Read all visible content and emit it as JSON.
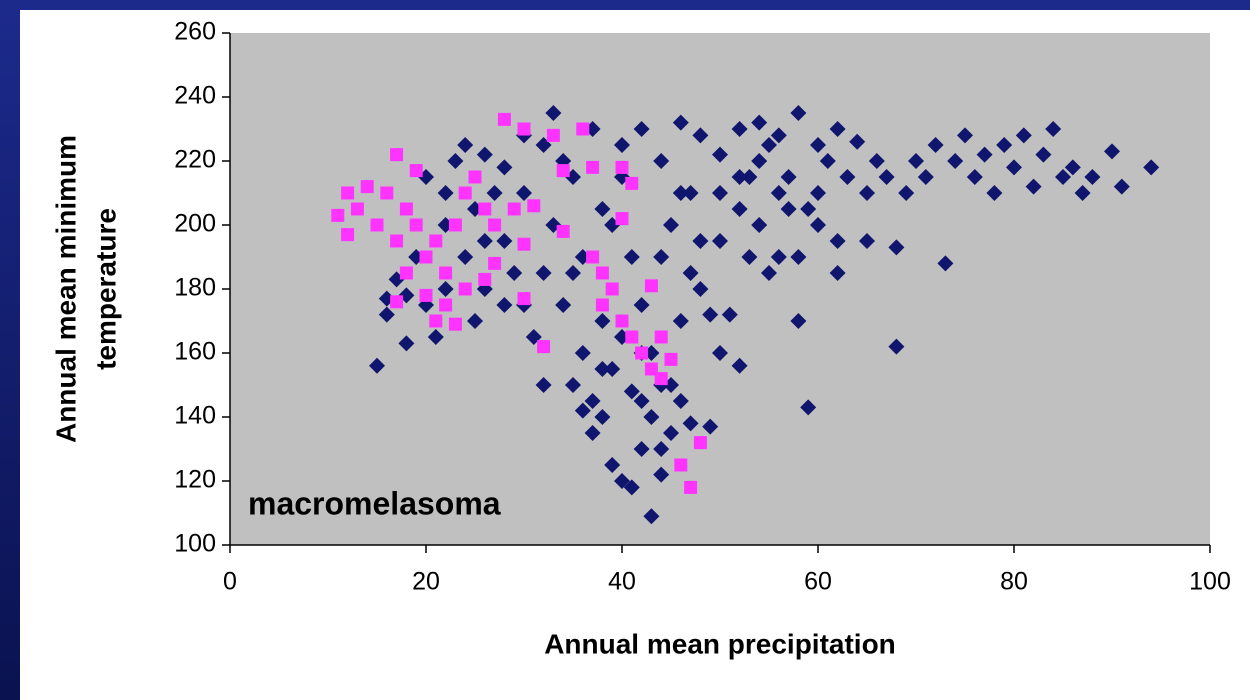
{
  "chart_data": {
    "type": "scatter",
    "xlabel": "Annual mean precipitation",
    "ylabel": [
      "Annual mean minimum",
      "temperature"
    ],
    "annotation": "macromelasoma",
    "xlim": [
      0,
      100
    ],
    "xticks": [
      0,
      20,
      40,
      60,
      80,
      100
    ],
    "ylim": [
      100,
      260
    ],
    "yticks": [
      100,
      120,
      140,
      160,
      180,
      200,
      220,
      240,
      260
    ],
    "grid": false,
    "background": "#c0c0c0",
    "series": [
      {
        "color": "#10166e",
        "marker": "diamond",
        "x": [
          15,
          16,
          17,
          18,
          19,
          20,
          21,
          22,
          23,
          24,
          25,
          26,
          27,
          28,
          29,
          30,
          31,
          32,
          33,
          34,
          35,
          36,
          37,
          38,
          39,
          40,
          41,
          42,
          43,
          44,
          45,
          46,
          47,
          48,
          49,
          50,
          51,
          52,
          53,
          54,
          55,
          56,
          57,
          58,
          59,
          60,
          61,
          62,
          63,
          64,
          65,
          66,
          67,
          68,
          69,
          70,
          71,
          72,
          73,
          74,
          75,
          76,
          77,
          78,
          79,
          80,
          81,
          82,
          83,
          84,
          85,
          86,
          87,
          88,
          90,
          91,
          94,
          38,
          39,
          40,
          41,
          42,
          43,
          44,
          45,
          46,
          47,
          49,
          35,
          36,
          37,
          39,
          41,
          43,
          44,
          42,
          25,
          28,
          30,
          32,
          33,
          35,
          37,
          40,
          42,
          44,
          46,
          48,
          50,
          52,
          54,
          56,
          58,
          60,
          62,
          45,
          47,
          50,
          52,
          55,
          58,
          60,
          62,
          65,
          68,
          36,
          34,
          32,
          28,
          26,
          24,
          22,
          20,
          18,
          16,
          22,
          26,
          30,
          38,
          44,
          48,
          50,
          53,
          57,
          59,
          54,
          56,
          52,
          46,
          42,
          40,
          38
        ],
        "values": [
          156,
          172,
          183,
          163,
          190,
          215,
          165,
          200,
          220,
          225,
          170,
          195,
          210,
          218,
          185,
          175,
          165,
          150,
          200,
          220,
          185,
          160,
          145,
          170,
          200,
          215,
          190,
          160,
          140,
          130,
          150,
          170,
          210,
          195,
          172,
          160,
          172,
          156,
          215,
          200,
          225,
          190,
          205,
          170,
          143,
          210,
          220,
          195,
          215,
          226,
          210,
          220,
          215,
          162,
          210,
          220,
          215,
          225,
          188,
          220,
          228,
          215,
          222,
          210,
          225,
          218,
          228,
          212,
          222,
          230,
          215,
          218,
          210,
          215,
          223,
          212,
          218,
          140,
          125,
          120,
          118,
          130,
          109,
          122,
          135,
          145,
          138,
          137,
          150,
          142,
          135,
          155,
          148,
          160,
          150,
          145,
          205,
          195,
          210,
          225,
          235,
          215,
          230,
          225,
          230,
          220,
          232,
          228,
          222,
          230,
          232,
          228,
          235,
          225,
          230,
          200,
          185,
          195,
          205,
          185,
          190,
          200,
          185,
          195,
          193,
          190,
          175,
          185,
          175,
          180,
          190,
          180,
          175,
          178,
          177,
          210,
          222,
          228,
          205,
          190,
          180,
          210,
          190,
          215,
          205,
          220,
          210,
          215,
          210,
          175,
          165,
          155
        ]
      },
      {
        "color": "#ff33ff",
        "marker": "square",
        "x": [
          11,
          12,
          12,
          13,
          14,
          15,
          16,
          17,
          18,
          17,
          18,
          19,
          20,
          20,
          21,
          22,
          21,
          22,
          23,
          24,
          24,
          25,
          26,
          27,
          27,
          26,
          28,
          29,
          30,
          30,
          30,
          31,
          32,
          33,
          34,
          34,
          36,
          37,
          37,
          38,
          38,
          39,
          40,
          40,
          41,
          40,
          41,
          42,
          43,
          43,
          44,
          44,
          45,
          46,
          47,
          48,
          23,
          17,
          19
        ],
        "values": [
          203,
          197,
          210,
          205,
          212,
          200,
          210,
          222,
          205,
          195,
          185,
          200,
          190,
          178,
          195,
          185,
          170,
          175,
          200,
          210,
          180,
          215,
          205,
          200,
          188,
          183,
          233,
          205,
          230,
          194,
          177,
          206,
          162,
          228,
          198,
          217,
          230,
          218,
          190,
          185,
          175,
          180,
          202,
          218,
          213,
          170,
          165,
          160,
          155,
          181,
          165,
          152,
          158,
          125,
          118,
          132,
          169,
          176,
          217
        ]
      }
    ]
  }
}
